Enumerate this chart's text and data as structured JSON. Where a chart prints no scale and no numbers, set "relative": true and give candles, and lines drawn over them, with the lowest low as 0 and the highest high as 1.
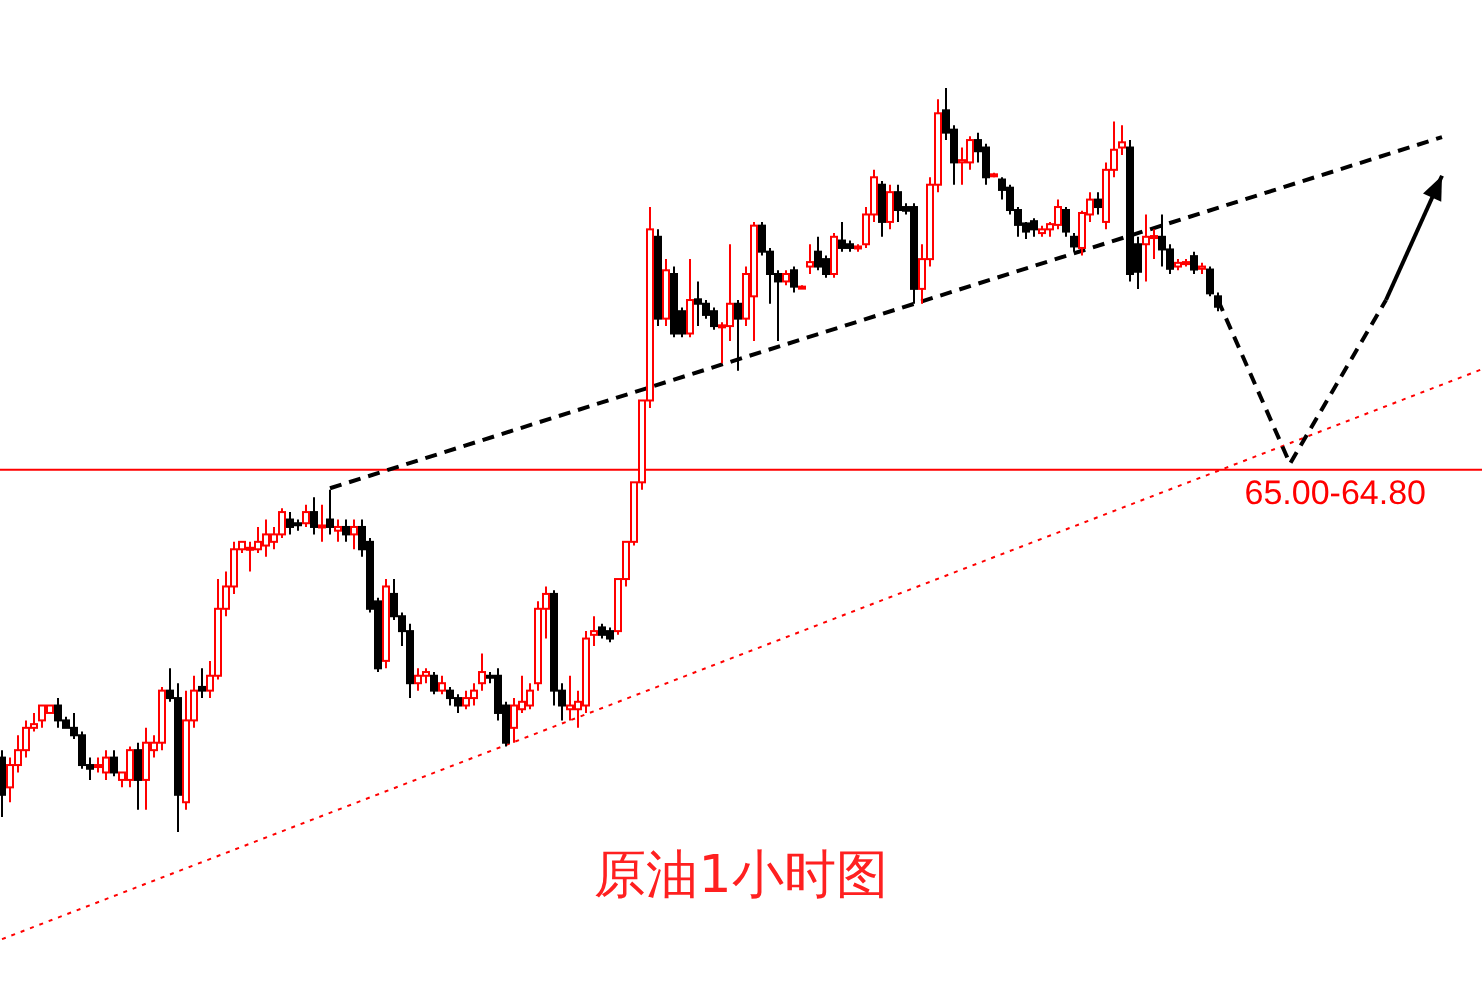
{
  "chart_data": {
    "type": "candlestick",
    "title": "原油1小时图",
    "relative": true,
    "categories": [
      null,
      null,
      null,
      null,
      null,
      null,
      null,
      null,
      null,
      null,
      null,
      null,
      null,
      null,
      null,
      null,
      null,
      null,
      null,
      null,
      null,
      null,
      null,
      null,
      null,
      null,
      null,
      null,
      null,
      null,
      null,
      null,
      null,
      null,
      null,
      null,
      null,
      null,
      null,
      null,
      null,
      null,
      null,
      null,
      null,
      null,
      null,
      null,
      null,
      null,
      null,
      null,
      null,
      null,
      null,
      null,
      null,
      null,
      null,
      null,
      null,
      null,
      null,
      null,
      null,
      null,
      null,
      null,
      null,
      null,
      null,
      null,
      null,
      null,
      null,
      null,
      null,
      null,
      null,
      null,
      null,
      null,
      null,
      null,
      null,
      null,
      null,
      null,
      null,
      null,
      null,
      null,
      null,
      null,
      null,
      null,
      null,
      null,
      null,
      null,
      null,
      null,
      null,
      null,
      null,
      null,
      null,
      null,
      null,
      null,
      null,
      null,
      null,
      null,
      null,
      null,
      null,
      null,
      null,
      null,
      null,
      null,
      null,
      null,
      null,
      null,
      null,
      null,
      null,
      null,
      null,
      null,
      null,
      null,
      null,
      null,
      null,
      null,
      null,
      null,
      null,
      null,
      null,
      null,
      null,
      null,
      null,
      null,
      null,
      null,
      null,
      null,
      null,
      null,
      null,
      null,
      null,
      null,
      null,
      null,
      null,
      null,
      null,
      null,
      null,
      null,
      null,
      null,
      null,
      null,
      null,
      null,
      null,
      null,
      null,
      null,
      null,
      null,
      null,
      null,
      null,
      null,
      null,
      null,
      null,
      null
    ],
    "ohlc": [
      [
        0.1,
        0.11,
        0.02,
        0.05
      ],
      [
        0.06,
        0.1,
        0.04,
        0.09
      ],
      [
        0.09,
        0.13,
        0.08,
        0.11
      ],
      [
        0.11,
        0.15,
        0.1,
        0.14
      ],
      [
        0.14,
        0.16,
        0.135,
        0.145
      ],
      [
        0.15,
        0.17,
        0.14,
        0.17
      ],
      [
        0.16,
        0.17,
        0.16,
        0.17
      ],
      [
        0.17,
        0.18,
        0.14,
        0.15
      ],
      [
        0.15,
        0.155,
        0.14,
        0.14
      ],
      [
        0.14,
        0.16,
        0.125,
        0.13
      ],
      [
        0.13,
        0.135,
        0.085,
        0.09
      ],
      [
        0.09,
        0.1,
        0.07,
        0.085
      ],
      [
        0.09,
        0.1,
        0.08,
        0.09
      ],
      [
        0.08,
        0.11,
        0.07,
        0.1
      ],
      [
        0.1,
        0.11,
        0.075,
        0.08
      ],
      [
        0.07,
        0.08,
        0.06,
        0.08
      ],
      [
        0.07,
        0.115,
        0.06,
        0.11
      ],
      [
        0.11,
        0.12,
        0.03,
        0.07
      ],
      [
        0.07,
        0.14,
        0.03,
        0.12
      ],
      [
        0.11,
        0.13,
        0.1,
        0.12
      ],
      [
        0.12,
        0.195,
        0.11,
        0.19
      ],
      [
        0.19,
        0.22,
        0.175,
        0.18
      ],
      [
        0.18,
        0.2,
        0,
        0.05
      ],
      [
        0.04,
        0.19,
        0.03,
        0.15
      ],
      [
        0.15,
        0.21,
        0.14,
        0.19
      ],
      [
        0.195,
        0.22,
        0.18,
        0.19
      ],
      [
        0.19,
        0.23,
        0.18,
        0.21
      ],
      [
        0.21,
        0.34,
        0.205,
        0.3
      ],
      [
        0.3,
        0.35,
        0.29,
        0.33
      ],
      [
        0.33,
        0.39,
        0.32,
        0.38
      ],
      [
        0.38,
        0.39,
        0.375,
        0.39
      ],
      [
        0.38,
        0.39,
        0.35,
        0.382
      ],
      [
        0.38,
        0.41,
        0.375,
        0.39
      ],
      [
        0.385,
        0.42,
        0.37,
        0.4
      ],
      [
        0.39,
        0.41,
        0.38,
        0.4
      ],
      [
        0.4,
        0.435,
        0.395,
        0.43
      ],
      [
        0.42,
        0.43,
        0.4,
        0.41
      ],
      [
        0.415,
        0.42,
        0.405,
        0.413
      ],
      [
        0.415,
        0.44,
        0.41,
        0.43
      ],
      [
        0.43,
        0.45,
        0.4,
        0.41
      ],
      [
        0.41,
        0.44,
        0.39,
        0.412
      ],
      [
        0.42,
        0.46,
        0.4,
        0.41
      ],
      [
        0.405,
        0.42,
        0.39,
        0.41
      ],
      [
        0.41,
        0.42,
        0.39,
        0.4
      ],
      [
        0.4,
        0.42,
        0.38,
        0.41
      ],
      [
        0.41,
        0.42,
        0.37,
        0.38
      ],
      [
        0.39,
        0.395,
        0.295,
        0.3
      ],
      [
        0.31,
        0.315,
        0.215,
        0.22
      ],
      [
        0.23,
        0.34,
        0.22,
        0.33
      ],
      [
        0.32,
        0.34,
        0.285,
        0.29
      ],
      [
        0.29,
        0.295,
        0.25,
        0.27
      ],
      [
        0.27,
        0.28,
        0.18,
        0.2
      ],
      [
        0.2,
        0.22,
        0.19,
        0.21
      ],
      [
        0.21,
        0.22,
        0.2,
        0.215
      ],
      [
        0.21,
        0.215,
        0.185,
        0.19
      ],
      [
        0.19,
        0.21,
        0.185,
        0.2
      ],
      [
        0.19,
        0.195,
        0.17,
        0.18
      ],
      [
        0.18,
        0.185,
        0.16,
        0.17
      ],
      [
        0.17,
        0.19,
        0.165,
        0.18
      ],
      [
        0.18,
        0.2,
        0.17,
        0.19
      ],
      [
        0.2,
        0.24,
        0.19,
        0.215
      ],
      [
        0.21,
        0.215,
        0.2,
        0.209
      ],
      [
        0.21,
        0.22,
        0.15,
        0.16
      ],
      [
        0.17,
        0.175,
        0.115,
        0.12
      ],
      [
        0.14,
        0.18,
        0.12,
        0.17
      ],
      [
        0.165,
        0.21,
        0.16,
        0.175
      ],
      [
        0.17,
        0.2,
        0.165,
        0.19
      ],
      [
        0.2,
        0.31,
        0.19,
        0.3
      ],
      [
        0.3,
        0.33,
        0.26,
        0.32
      ],
      [
        0.32,
        0.325,
        0.17,
        0.19
      ],
      [
        0.19,
        0.2,
        0.15,
        0.17
      ],
      [
        0.165,
        0.21,
        0.15,
        0.17
      ],
      [
        0.165,
        0.19,
        0.14,
        0.175
      ],
      [
        0.17,
        0.27,
        0.16,
        0.26
      ],
      [
        0.265,
        0.29,
        0.25,
        0.27
      ],
      [
        0.275,
        0.28,
        0.26,
        0.265
      ],
      [
        0.27,
        0.275,
        0.255,
        0.26
      ],
      [
        0.27,
        0.34,
        0.265,
        0.34
      ],
      [
        0.34,
        0.39,
        0.33,
        0.39
      ],
      [
        0.39,
        0.47,
        0.385,
        0.47
      ],
      [
        0.47,
        0.58,
        0.46,
        0.58
      ],
      [
        0.58,
        0.84,
        0.57,
        0.81
      ],
      [
        0.8,
        0.81,
        0.68,
        0.69
      ],
      [
        0.69,
        0.77,
        0.68,
        0.755
      ],
      [
        0.75,
        0.76,
        0.665,
        0.67
      ],
      [
        0.7,
        0.705,
        0.665,
        0.67
      ],
      [
        0.67,
        0.77,
        0.665,
        0.715
      ],
      [
        0.716,
        0.74,
        0.68,
        0.71
      ],
      [
        0.71,
        0.715,
        0.69,
        0.695
      ],
      [
        0.7,
        0.705,
        0.675,
        0.68
      ],
      [
        0.68,
        0.685,
        0.63,
        0.681
      ],
      [
        0.68,
        0.79,
        0.66,
        0.71
      ],
      [
        0.71,
        0.715,
        0.62,
        0.69
      ],
      [
        0.69,
        0.76,
        0.68,
        0.75
      ],
      [
        0.72,
        0.82,
        0.66,
        0.815
      ],
      [
        0.815,
        0.82,
        0.775,
        0.78
      ],
      [
        0.78,
        0.785,
        0.71,
        0.75
      ],
      [
        0.75,
        0.755,
        0.66,
        0.74
      ],
      [
        0.74,
        0.755,
        0.735,
        0.75
      ],
      [
        0.755,
        0.76,
        0.725,
        0.733
      ],
      [
        0.733,
        0.735,
        0.73,
        0.733
      ],
      [
        0.76,
        0.79,
        0.75,
        0.766
      ],
      [
        0.78,
        0.8,
        0.755,
        0.76
      ],
      [
        0.77,
        0.775,
        0.745,
        0.75
      ],
      [
        0.75,
        0.805,
        0.745,
        0.8
      ],
      [
        0.795,
        0.82,
        0.78,
        0.785
      ],
      [
        0.79,
        0.795,
        0.78,
        0.785
      ],
      [
        0.787,
        0.79,
        0.78,
        0.787
      ],
      [
        0.79,
        0.84,
        0.785,
        0.83
      ],
      [
        0.83,
        0.89,
        0.82,
        0.88
      ],
      [
        0.87,
        0.875,
        0.8,
        0.82
      ],
      [
        0.82,
        0.87,
        0.81,
        0.86
      ],
      [
        0.86,
        0.87,
        0.82,
        0.836
      ],
      [
        0.84,
        0.845,
        0.83,
        0.835
      ],
      [
        0.84,
        0.845,
        0.71,
        0.73
      ],
      [
        0.73,
        0.79,
        0.71,
        0.77
      ],
      [
        0.77,
        0.88,
        0.76,
        0.87
      ],
      [
        0.87,
        0.985,
        0.86,
        0.966
      ],
      [
        0.97,
        1.0,
        0.93,
        0.94
      ],
      [
        0.944,
        0.95,
        0.87,
        0.9
      ],
      [
        0.9,
        0.92,
        0.87,
        0.903
      ],
      [
        0.9,
        0.935,
        0.89,
        0.93
      ],
      [
        0.93,
        0.94,
        0.9,
        0.915
      ],
      [
        0.92,
        0.925,
        0.87,
        0.88
      ],
      [
        0.884,
        0.886,
        0.88,
        0.884
      ],
      [
        0.877,
        0.88,
        0.85,
        0.863
      ],
      [
        0.866,
        0.87,
        0.83,
        0.836
      ],
      [
        0.836,
        0.84,
        0.8,
        0.816
      ],
      [
        0.818,
        0.82,
        0.797,
        0.807
      ],
      [
        0.821,
        0.825,
        0.8,
        0.81
      ],
      [
        0.805,
        0.815,
        0.8,
        0.81
      ],
      [
        0.81,
        0.82,
        0.8,
        0.817
      ],
      [
        0.816,
        0.85,
        0.81,
        0.84
      ],
      [
        0.836,
        0.84,
        0.8,
        0.807
      ],
      [
        0.8,
        0.805,
        0.78,
        0.787
      ],
      [
        0.785,
        0.835,
        0.775,
        0.832
      ],
      [
        0.83,
        0.86,
        0.82,
        0.85
      ],
      [
        0.85,
        0.86,
        0.83,
        0.84
      ],
      [
        0.82,
        0.9,
        0.81,
        0.89
      ],
      [
        0.89,
        0.955,
        0.88,
        0.917
      ],
      [
        0.92,
        0.95,
        0.91,
        0.927
      ],
      [
        0.92,
        0.93,
        0.74,
        0.75
      ],
      [
        0.79,
        0.8,
        0.73,
        0.753
      ],
      [
        0.79,
        0.83,
        0.74,
        0.8
      ],
      [
        0.8,
        0.81,
        0.77,
        0.801
      ],
      [
        0.8,
        0.83,
        0.76,
        0.783
      ],
      [
        0.783,
        0.79,
        0.75,
        0.757
      ],
      [
        0.76,
        0.77,
        0.755,
        0.765
      ],
      [
        0.765,
        0.77,
        0.76,
        0.766
      ],
      [
        0.774,
        0.78,
        0.75,
        0.756
      ],
      [
        0.757,
        0.765,
        0.75,
        0.76
      ],
      [
        0.756,
        0.76,
        0.72,
        0.724
      ],
      [
        0.72,
        0.725,
        0.7,
        0.706
      ],
      null,
      null,
      null,
      null,
      null,
      null,
      null,
      null,
      null,
      null,
      null,
      null,
      null,
      null,
      null,
      null,
      null,
      null,
      null,
      null,
      null,
      null,
      null,
      null,
      null,
      null,
      null,
      null,
      null,
      null,
      null,
      null,
      null
    ],
    "series": [
      {
        "type": "line",
        "color": "#ff0000",
        "line_style": "dotted",
        "values": [
          -0.144,
          null,
          null,
          null,
          null,
          null,
          null,
          null,
          null,
          null,
          null,
          null,
          null,
          null,
          null,
          null,
          null,
          null,
          null,
          null,
          null,
          null,
          null,
          null,
          null,
          null,
          null,
          null,
          null,
          null,
          null,
          null,
          null,
          null,
          null,
          null,
          null,
          null,
          null,
          null,
          null,
          null,
          null,
          null,
          null,
          null,
          null,
          null,
          null,
          null,
          null,
          null,
          null,
          null,
          null,
          null,
          null,
          null,
          null,
          null,
          null,
          null,
          null,
          null,
          null,
          null,
          null,
          null,
          null,
          null,
          null,
          null,
          null,
          null,
          null,
          null,
          null,
          null,
          null,
          null,
          null,
          null,
          null,
          null,
          null,
          null,
          null,
          null,
          null,
          null,
          null,
          null,
          null,
          null,
          null,
          null,
          null,
          null,
          null,
          null,
          null,
          null,
          null,
          null,
          null,
          null,
          null,
          null,
          null,
          null,
          null,
          null,
          null,
          null,
          null,
          null,
          null,
          null,
          null,
          null,
          null,
          null,
          null,
          null,
          null,
          null,
          null,
          null,
          null,
          null,
          null,
          null,
          null,
          null,
          null,
          null,
          null,
          null,
          null,
          null,
          null,
          null,
          null,
          null,
          null,
          null,
          null,
          null,
          null,
          null,
          null,
          null,
          null,
          null,
          null,
          null,
          null,
          null,
          null,
          null,
          null,
          null,
          null,
          null,
          null,
          null,
          null,
          null,
          null,
          null,
          null,
          null,
          null,
          null,
          null,
          null,
          null,
          null,
          null,
          null,
          null,
          null,
          null,
          null,
          null,
          0.622
        ]
      },
      {
        "type": "line",
        "color": "#000000",
        "line_style": "dashed",
        "values": [
          null,
          null,
          null,
          null,
          null,
          null,
          null,
          null,
          null,
          null,
          null,
          null,
          null,
          null,
          null,
          null,
          null,
          null,
          null,
          null,
          null,
          null,
          null,
          null,
          null,
          null,
          null,
          null,
          null,
          null,
          null,
          null,
          null,
          null,
          null,
          null,
          null,
          null,
          null,
          null,
          null,
          0.462,
          null,
          null,
          null,
          null,
          null,
          null,
          null,
          null,
          null,
          null,
          null,
          null,
          null,
          null,
          null,
          null,
          null,
          null,
          null,
          null,
          null,
          null,
          null,
          null,
          null,
          null,
          null,
          null,
          null,
          null,
          null,
          null,
          null,
          null,
          null,
          null,
          null,
          null,
          null,
          null,
          null,
          null,
          null,
          null,
          null,
          null,
          null,
          null,
          null,
          null,
          null,
          null,
          null,
          null,
          null,
          null,
          null,
          null,
          null,
          null,
          null,
          null,
          null,
          null,
          null,
          null,
          null,
          null,
          null,
          null,
          null,
          null,
          null,
          null,
          null,
          null,
          null,
          null,
          null,
          null,
          null,
          null,
          null,
          null,
          null,
          null,
          null,
          null,
          null,
          null,
          null,
          null,
          null,
          null,
          null,
          null,
          null,
          null,
          null,
          null,
          null,
          null,
          null,
          null,
          null,
          null,
          null,
          null,
          null,
          null,
          null,
          null,
          null,
          null,
          null,
          null,
          null,
          null,
          null,
          null,
          null,
          null,
          null,
          null,
          null,
          null,
          null,
          null,
          null,
          null,
          null,
          null,
          null,
          null,
          null,
          null,
          null,
          null,
          0.934,
          null,
          null,
          null,
          null,
          null
        ]
      },
      {
        "type": "line",
        "color": "#000000",
        "line_style": "dashed",
        "values": [
          null,
          null,
          null,
          null,
          null,
          null,
          null,
          null,
          null,
          null,
          null,
          null,
          null,
          null,
          null,
          null,
          null,
          null,
          null,
          null,
          null,
          null,
          null,
          null,
          null,
          null,
          null,
          null,
          null,
          null,
          null,
          null,
          null,
          null,
          null,
          null,
          null,
          null,
          null,
          null,
          null,
          null,
          null,
          null,
          null,
          null,
          null,
          null,
          null,
          null,
          null,
          null,
          null,
          null,
          null,
          null,
          null,
          null,
          null,
          null,
          null,
          null,
          null,
          null,
          null,
          null,
          null,
          null,
          null,
          null,
          null,
          null,
          null,
          null,
          null,
          null,
          null,
          null,
          null,
          null,
          null,
          null,
          null,
          null,
          null,
          null,
          null,
          null,
          null,
          null,
          null,
          null,
          null,
          null,
          null,
          null,
          null,
          null,
          null,
          null,
          null,
          null,
          null,
          null,
          null,
          null,
          null,
          null,
          null,
          null,
          null,
          null,
          null,
          null,
          null,
          null,
          null,
          null,
          null,
          null,
          null,
          null,
          null,
          null,
          null,
          null,
          null,
          null,
          null,
          null,
          null,
          null,
          null,
          null,
          null,
          null,
          null,
          null,
          null,
          null,
          null,
          null,
          null,
          null,
          null,
          null,
          null,
          null,
          null,
          null,
          null,
          null,
          0.715,
          null,
          null,
          null,
          null,
          null,
          null,
          null,
          null,
          0.495,
          null,
          null,
          null,
          null,
          null,
          null,
          null,
          null,
          null,
          null,
          null,
          0.715,
          null,
          null,
          null,
          null,
          null,
          null,
          null,
          null,
          null,
          null,
          null,
          null
        ]
      },
      {
        "type": "line",
        "color": "#000000",
        "line_style": "solid",
        "values": [
          null,
          null,
          null,
          null,
          null,
          null,
          null,
          null,
          null,
          null,
          null,
          null,
          null,
          null,
          null,
          null,
          null,
          null,
          null,
          null,
          null,
          null,
          null,
          null,
          null,
          null,
          null,
          null,
          null,
          null,
          null,
          null,
          null,
          null,
          null,
          null,
          null,
          null,
          null,
          null,
          null,
          null,
          null,
          null,
          null,
          null,
          null,
          null,
          null,
          null,
          null,
          null,
          null,
          null,
          null,
          null,
          null,
          null,
          null,
          null,
          null,
          null,
          null,
          null,
          null,
          null,
          null,
          null,
          null,
          null,
          null,
          null,
          null,
          null,
          null,
          null,
          null,
          null,
          null,
          null,
          null,
          null,
          null,
          null,
          null,
          null,
          null,
          null,
          null,
          null,
          null,
          null,
          null,
          null,
          null,
          null,
          null,
          null,
          null,
          null,
          null,
          null,
          null,
          null,
          null,
          null,
          null,
          null,
          null,
          null,
          null,
          null,
          null,
          null,
          null,
          null,
          null,
          null,
          null,
          null,
          null,
          null,
          null,
          null,
          null,
          null,
          null,
          null,
          null,
          null,
          null,
          null,
          null,
          null,
          null,
          null,
          null,
          null,
          null,
          null,
          null,
          null,
          null,
          null,
          null,
          null,
          null,
          null,
          null,
          null,
          null,
          null,
          null,
          null,
          null,
          null,
          null,
          null,
          null,
          null,
          null,
          null,
          null,
          null,
          null,
          null,
          null,
          null,
          null,
          null,
          null,
          null,
          null,
          0.715,
          null,
          null,
          null,
          null,
          null,
          null,
          0.882,
          null,
          null,
          null,
          null,
          null
        ]
      }
    ],
    "ref_lines": [
      {
        "axis": "y",
        "value": 0.487,
        "color": "#ff0000"
      }
    ],
    "annotations": [
      "65.00-64.80"
    ]
  }
}
